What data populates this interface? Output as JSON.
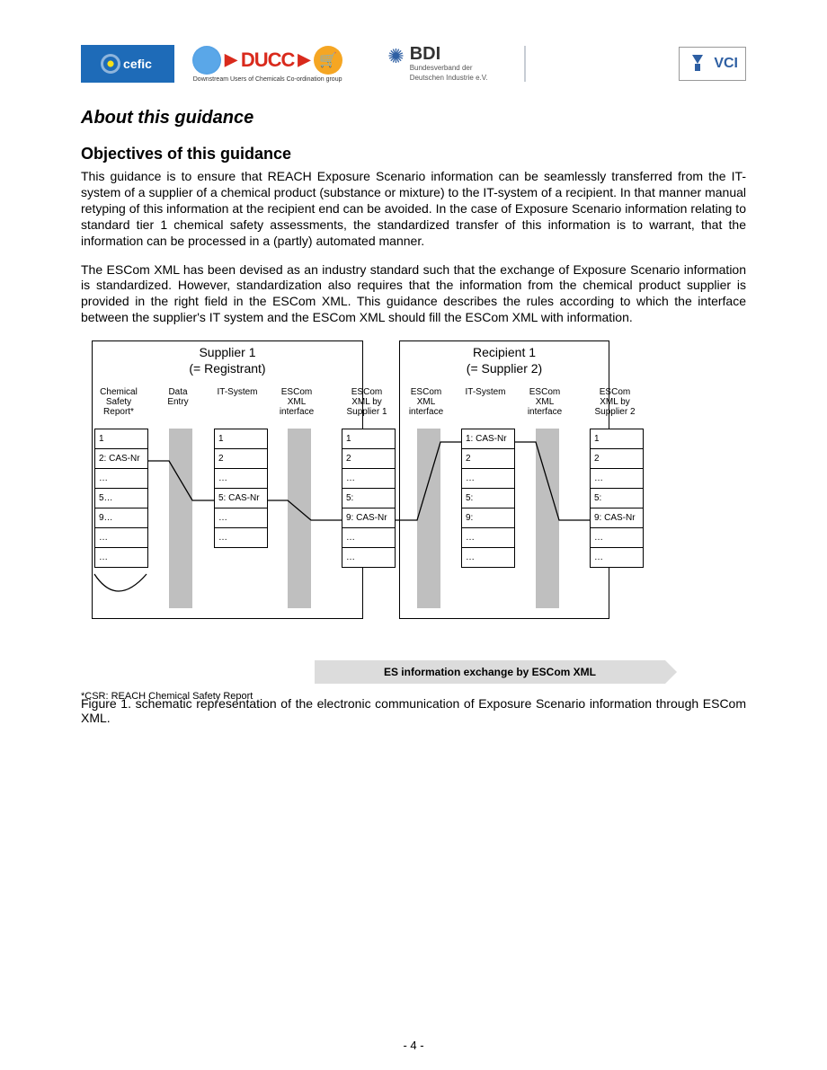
{
  "logos": {
    "cefic_label": "cefic",
    "ducc_label": "DUCC",
    "ducc_sub": "Downstream Users of Chemicals Co-ordination group",
    "bdi_label": "BDI",
    "bdi_sub1": "Bundesverband der",
    "bdi_sub2": "Deutschen Industrie e.V.",
    "vci_label": "VCI"
  },
  "headings": {
    "about": "About this guidance",
    "objectives": "Objectives of this guidance"
  },
  "paragraphs": {
    "p1": "This guidance is to ensure that REACH Exposure Scenario information can be seamlessly transferred from the IT-system of a supplier of a chemical product (substance or mixture) to the IT-system of a recipient. In that manner manual retyping of this information at the recipient end can be avoided. In the case of Exposure Scenario information relating to standard tier 1 chemical safety assessments, the standardized transfer of this information is to warrant, that the information can be processed in a (partly) automated manner.",
    "p2": "The ESCom XML has been devised as an industry standard such that the exchange of Exposure Scenario information is standardized. However, standardization also requires that the information from the chemical product supplier is provided in the right field in the ESCom XML. This guidance describes the rules according to which the interface between the supplier's IT system and the ESCom XML should fill the ESCom XML with information."
  },
  "diagram": {
    "supplier_title_1": "Supplier 1",
    "supplier_title_2": "(= Registrant)",
    "recipient_title_1": "Recipient 1",
    "recipient_title_2": "(= Supplier 2)",
    "headers": {
      "csr1": "Chemical",
      "csr2": "Safety",
      "csr3": "Report*",
      "data1": "Data",
      "data2": "Entry",
      "it": "IT-System",
      "escom_if1": "ESCom",
      "escom_if2": "XML",
      "escom_if3": "interface",
      "escom_by_s1_1": "ESCom",
      "escom_by_s1_2": "XML by",
      "escom_by_s1_3": "Supplier 1",
      "escom_by_s2_1": "ESCom",
      "escom_by_s2_2": "XML by",
      "escom_by_s2_3": "Supplier 2"
    },
    "col_csr": [
      "1",
      "2: CAS-Nr",
      "…",
      "5…",
      "9…",
      "…",
      "…"
    ],
    "col_data": [
      "1",
      "2",
      "…",
      "5: CAS-Nr",
      "…",
      "…"
    ],
    "col_supp1": [
      "1",
      "2",
      "…",
      "5:",
      "9: CAS-Nr",
      "…",
      "…"
    ],
    "col_rec_it": [
      "1: CAS-Nr",
      "2",
      "…",
      "5:",
      "9:",
      "…",
      "…"
    ],
    "col_supp2": [
      "1",
      "2",
      "…",
      "5:",
      "9: CAS-Nr",
      "…",
      "…"
    ]
  },
  "footnote": "*CSR: REACH Chemical Safety Report",
  "exchange_label": "ES information exchange by ESCom XML",
  "figure_caption": "Figure 1. schematic representation of the electronic communication of Exposure Scenario information through ESCom XML.",
  "page_number": "- 4 -",
  "colors": {
    "cefic_bg": "#1e6bb8",
    "ducc_red": "#d92a1c",
    "cart_bg": "#f5a623",
    "bdi_blue": "#2e5fa3",
    "grey_bar": "#bfbfbf",
    "exchange_bg": "#dcdcdc"
  }
}
